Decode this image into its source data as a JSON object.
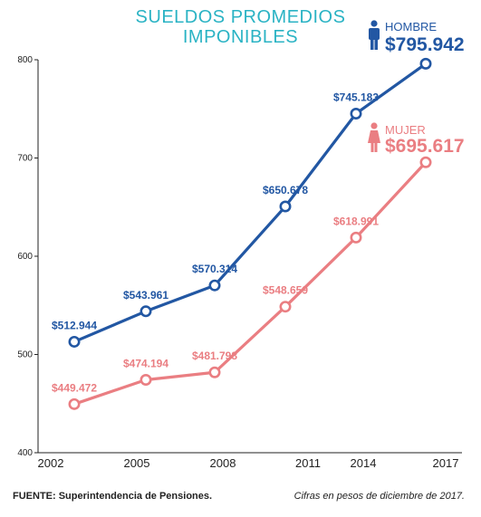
{
  "title_line1": "SUELDOS PROMEDIOS",
  "title_line2": "IMPONIBLES",
  "source": "FUENTE: Superintendencia de Pensiones.",
  "note": "Cifras en pesos de diciembre de 2017.",
  "legend": {
    "hombre_label": "HOMBRE",
    "hombre_value": "$795.942",
    "mujer_label": "MUJER",
    "mujer_value": "$695.617"
  },
  "colors": {
    "hombre": "#2257a3",
    "mujer": "#ea7e82",
    "title": "#2ab3c4"
  },
  "icons": [
    "male-person-icon",
    "female-person-icon"
  ],
  "chart_data": {
    "type": "line",
    "title": "SUELDOS PROMEDIOS IMPONIBLES",
    "x_tick_labels": [
      "2002",
      "2005",
      "2008",
      "2011",
      "2014",
      "2017"
    ],
    "y_tick_labels": [
      "400",
      "500",
      "600",
      "700",
      "800"
    ],
    "ylim": [
      400,
      800
    ],
    "grid": false,
    "series": [
      {
        "name": "HOMBRE",
        "color": "#2257a3",
        "values": [
          512.944,
          543.961,
          570.314,
          650.678,
          745.183,
          795.942
        ],
        "labels": [
          "$512.944",
          "$543.961",
          "$570.314",
          "$650.678",
          "$745.183",
          ""
        ]
      },
      {
        "name": "MUJER",
        "color": "#ea7e82",
        "values": [
          449.472,
          474.194,
          481.798,
          548.659,
          618.991,
          695.617
        ],
        "labels": [
          "$449.472",
          "$474.194",
          "$481.798",
          "$548.659",
          "$618.991",
          ""
        ]
      }
    ]
  }
}
